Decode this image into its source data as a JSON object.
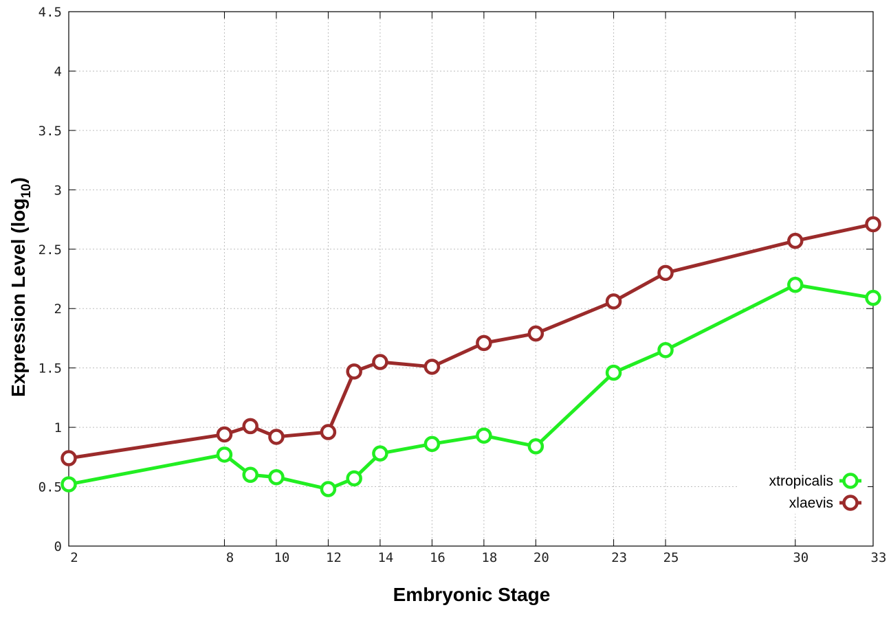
{
  "chart_data": {
    "type": "line",
    "title": "",
    "xlabel": "Embryonic Stage",
    "ylabel": "Expression Level (log",
    "ylabel_sub": "10",
    "ylabel_close": ")",
    "xlim": [
      2,
      33
    ],
    "ylim": [
      0,
      4.5
    ],
    "x_ticks": [
      2,
      8,
      10,
      12,
      14,
      16,
      18,
      20,
      23,
      25,
      30,
      33
    ],
    "x_tick_labels": [
      "2",
      "8",
      "10",
      "12",
      "14",
      "16",
      "18",
      "20",
      "23",
      "25",
      "30",
      "33"
    ],
    "y_ticks": [
      0,
      0.5,
      1,
      1.5,
      2,
      2.5,
      3,
      3.5,
      4,
      4.5
    ],
    "y_tick_labels": [
      "0",
      "0.5",
      "1",
      "1.5",
      "2",
      "2.5",
      "3",
      "3.5",
      "4",
      "4.5"
    ],
    "grid": true,
    "legend_position": "bottom-right",
    "x": [
      2,
      8,
      9,
      10,
      12,
      13,
      14,
      16,
      18,
      20,
      23,
      25,
      30,
      33
    ],
    "series": [
      {
        "name": "xtropicalis",
        "color": "#22ee22",
        "values": [
          0.52,
          0.77,
          0.6,
          0.58,
          0.48,
          0.57,
          0.78,
          0.86,
          0.93,
          0.84,
          1.46,
          1.65,
          2.2,
          2.09
        ]
      },
      {
        "name": "xlaevis",
        "color": "#9b2b2b",
        "values": [
          0.74,
          0.94,
          1.01,
          0.92,
          0.96,
          1.47,
          1.55,
          1.51,
          1.71,
          1.79,
          2.06,
          2.3,
          2.57,
          2.71
        ]
      }
    ]
  }
}
